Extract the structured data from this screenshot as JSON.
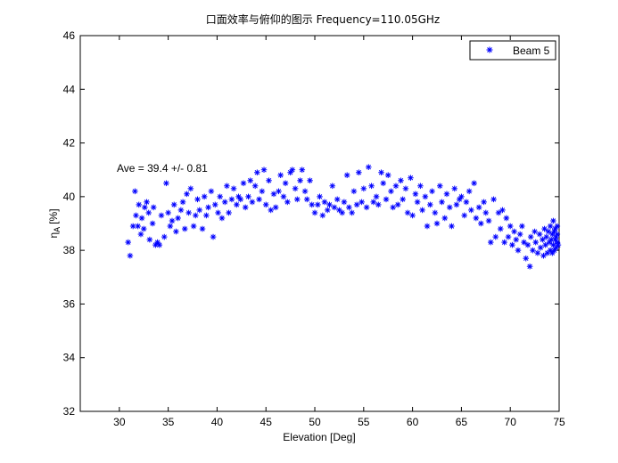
{
  "chart_data": {
    "type": "scatter",
    "title": "口面效率与俯仰的图示 Frequency=110.05GHz",
    "xlabel": "Elevation [Deg]",
    "ylabel_main": "η",
    "ylabel_sub": "A",
    "ylabel_unit": "[%]",
    "xlim": [
      26,
      75
    ],
    "ylim": [
      32,
      46
    ],
    "xticks": [
      30,
      35,
      40,
      45,
      50,
      55,
      60,
      65,
      70,
      75
    ],
    "yticks": [
      32,
      34,
      36,
      38,
      40,
      42,
      44,
      46
    ],
    "grid": false,
    "legend_position": "top-right",
    "annotation": "Ave = 39.4 +/- 0.81",
    "color": "#0000ff",
    "marker": "asterisk",
    "series": [
      {
        "name": "Beam 5",
        "points": [
          [
            30.9,
            38.3
          ],
          [
            31.1,
            37.8
          ],
          [
            31.4,
            38.9
          ],
          [
            31.6,
            40.2
          ],
          [
            31.7,
            39.3
          ],
          [
            31.9,
            38.9
          ],
          [
            32.0,
            39.7
          ],
          [
            32.2,
            38.6
          ],
          [
            32.3,
            39.2
          ],
          [
            32.5,
            38.8
          ],
          [
            32.6,
            39.6
          ],
          [
            32.8,
            39.8
          ],
          [
            33.0,
            39.4
          ],
          [
            33.1,
            38.4
          ],
          [
            33.4,
            39.0
          ],
          [
            33.5,
            39.6
          ],
          [
            33.7,
            38.2
          ],
          [
            33.9,
            38.3
          ],
          [
            34.1,
            38.2
          ],
          [
            34.3,
            39.3
          ],
          [
            34.6,
            38.5
          ],
          [
            34.8,
            40.5
          ],
          [
            35.0,
            39.4
          ],
          [
            35.2,
            38.9
          ],
          [
            35.4,
            39.1
          ],
          [
            35.6,
            39.7
          ],
          [
            35.8,
            38.7
          ],
          [
            36.0,
            39.2
          ],
          [
            36.3,
            39.5
          ],
          [
            36.5,
            39.8
          ],
          [
            36.7,
            38.8
          ],
          [
            36.9,
            40.1
          ],
          [
            37.1,
            39.4
          ],
          [
            37.3,
            40.3
          ],
          [
            37.6,
            38.9
          ],
          [
            37.8,
            39.3
          ],
          [
            38.0,
            39.9
          ],
          [
            38.2,
            39.5
          ],
          [
            38.5,
            38.8
          ],
          [
            38.7,
            40.0
          ],
          [
            38.9,
            39.3
          ],
          [
            39.1,
            39.6
          ],
          [
            39.4,
            40.2
          ],
          [
            39.6,
            38.5
          ],
          [
            39.8,
            39.7
          ],
          [
            40.1,
            39.4
          ],
          [
            40.3,
            40.0
          ],
          [
            40.5,
            39.2
          ],
          [
            40.8,
            39.8
          ],
          [
            41.0,
            40.4
          ],
          [
            41.2,
            39.4
          ],
          [
            41.5,
            39.9
          ],
          [
            41.7,
            40.3
          ],
          [
            42.0,
            39.7
          ],
          [
            42.2,
            40.0
          ],
          [
            42.4,
            39.9
          ],
          [
            42.7,
            40.5
          ],
          [
            42.9,
            39.6
          ],
          [
            43.2,
            40.0
          ],
          [
            43.4,
            40.6
          ],
          [
            43.6,
            39.8
          ],
          [
            43.9,
            40.4
          ],
          [
            44.1,
            40.9
          ],
          [
            44.3,
            39.9
          ],
          [
            44.6,
            40.2
          ],
          [
            44.8,
            41.0
          ],
          [
            45.0,
            39.7
          ],
          [
            45.3,
            40.6
          ],
          [
            45.5,
            39.5
          ],
          [
            45.8,
            40.1
          ],
          [
            46.0,
            39.6
          ],
          [
            46.3,
            40.2
          ],
          [
            46.5,
            40.8
          ],
          [
            46.8,
            40.0
          ],
          [
            47.0,
            40.5
          ],
          [
            47.2,
            39.8
          ],
          [
            47.5,
            40.9
          ],
          [
            47.7,
            41.0
          ],
          [
            48.0,
            40.3
          ],
          [
            48.2,
            39.9
          ],
          [
            48.5,
            40.6
          ],
          [
            48.7,
            41.0
          ],
          [
            49.0,
            40.2
          ],
          [
            49.2,
            39.9
          ],
          [
            49.5,
            40.6
          ],
          [
            49.7,
            39.7
          ],
          [
            50.0,
            39.4
          ],
          [
            50.3,
            39.7
          ],
          [
            50.5,
            40.0
          ],
          [
            50.8,
            39.3
          ],
          [
            51.0,
            39.8
          ],
          [
            51.3,
            39.5
          ],
          [
            51.5,
            39.7
          ],
          [
            51.8,
            40.4
          ],
          [
            52.0,
            39.6
          ],
          [
            52.3,
            39.9
          ],
          [
            52.5,
            39.5
          ],
          [
            52.8,
            39.4
          ],
          [
            53.0,
            39.8
          ],
          [
            53.3,
            40.8
          ],
          [
            53.5,
            39.6
          ],
          [
            53.8,
            39.4
          ],
          [
            54.0,
            40.2
          ],
          [
            54.3,
            39.7
          ],
          [
            54.5,
            40.9
          ],
          [
            54.8,
            39.8
          ],
          [
            55.0,
            40.3
          ],
          [
            55.3,
            39.6
          ],
          [
            55.5,
            41.1
          ],
          [
            55.8,
            40.4
          ],
          [
            56.0,
            39.8
          ],
          [
            56.3,
            40.0
          ],
          [
            56.5,
            39.7
          ],
          [
            56.8,
            40.9
          ],
          [
            57.0,
            40.5
          ],
          [
            57.3,
            39.9
          ],
          [
            57.5,
            40.8
          ],
          [
            57.8,
            40.2
          ],
          [
            58.0,
            39.6
          ],
          [
            58.3,
            40.4
          ],
          [
            58.5,
            39.7
          ],
          [
            58.8,
            40.6
          ],
          [
            59.0,
            39.9
          ],
          [
            59.3,
            40.3
          ],
          [
            59.5,
            39.4
          ],
          [
            59.8,
            40.7
          ],
          [
            60.0,
            39.3
          ],
          [
            60.3,
            40.1
          ],
          [
            60.5,
            39.8
          ],
          [
            60.8,
            40.4
          ],
          [
            61.0,
            39.5
          ],
          [
            61.3,
            40.0
          ],
          [
            61.5,
            38.9
          ],
          [
            61.8,
            39.7
          ],
          [
            62.0,
            40.2
          ],
          [
            62.3,
            39.4
          ],
          [
            62.5,
            39.0
          ],
          [
            62.8,
            40.4
          ],
          [
            63.0,
            39.8
          ],
          [
            63.3,
            39.2
          ],
          [
            63.5,
            40.1
          ],
          [
            63.8,
            39.6
          ],
          [
            64.0,
            38.9
          ],
          [
            64.3,
            40.3
          ],
          [
            64.5,
            39.7
          ],
          [
            64.8,
            39.9
          ],
          [
            65.0,
            40.0
          ],
          [
            65.3,
            39.3
          ],
          [
            65.5,
            39.8
          ],
          [
            65.8,
            40.2
          ],
          [
            66.0,
            39.5
          ],
          [
            66.3,
            40.5
          ],
          [
            66.5,
            39.2
          ],
          [
            66.8,
            39.6
          ],
          [
            67.0,
            39.0
          ],
          [
            67.3,
            39.8
          ],
          [
            67.5,
            39.4
          ],
          [
            67.8,
            39.1
          ],
          [
            68.0,
            38.3
          ],
          [
            68.3,
            39.9
          ],
          [
            68.5,
            38.5
          ],
          [
            68.8,
            39.4
          ],
          [
            69.0,
            38.8
          ],
          [
            69.2,
            39.5
          ],
          [
            69.4,
            38.3
          ],
          [
            69.6,
            39.2
          ],
          [
            69.8,
            38.5
          ],
          [
            70.0,
            38.9
          ],
          [
            70.2,
            38.2
          ],
          [
            70.4,
            38.7
          ],
          [
            70.6,
            38.4
          ],
          [
            70.8,
            38.0
          ],
          [
            71.0,
            38.6
          ],
          [
            71.2,
            38.9
          ],
          [
            71.4,
            38.3
          ],
          [
            71.6,
            37.7
          ],
          [
            71.8,
            38.2
          ],
          [
            72.0,
            37.4
          ],
          [
            72.1,
            38.5
          ],
          [
            72.3,
            38.0
          ],
          [
            72.5,
            38.7
          ],
          [
            72.6,
            38.3
          ],
          [
            72.8,
            37.9
          ],
          [
            73.0,
            38.6
          ],
          [
            73.1,
            38.1
          ],
          [
            73.3,
            38.4
          ],
          [
            73.4,
            37.8
          ],
          [
            73.5,
            38.8
          ],
          [
            73.6,
            38.2
          ],
          [
            73.7,
            38.5
          ],
          [
            73.8,
            37.9
          ],
          [
            73.9,
            38.7
          ],
          [
            74.0,
            38.3
          ],
          [
            74.1,
            38.0
          ],
          [
            74.1,
            38.9
          ],
          [
            74.2,
            38.4
          ],
          [
            74.3,
            37.9
          ],
          [
            74.3,
            38.6
          ],
          [
            74.4,
            39.1
          ],
          [
            74.4,
            38.2
          ],
          [
            74.5,
            38.7
          ],
          [
            74.5,
            38.0
          ],
          [
            74.6,
            38.4
          ],
          [
            74.6,
            38.8
          ],
          [
            74.7,
            38.1
          ],
          [
            74.7,
            38.5
          ],
          [
            74.8,
            38.3
          ],
          [
            74.8,
            38.9
          ],
          [
            74.8,
            38.6
          ],
          [
            74.9,
            38.2
          ]
        ]
      }
    ]
  }
}
